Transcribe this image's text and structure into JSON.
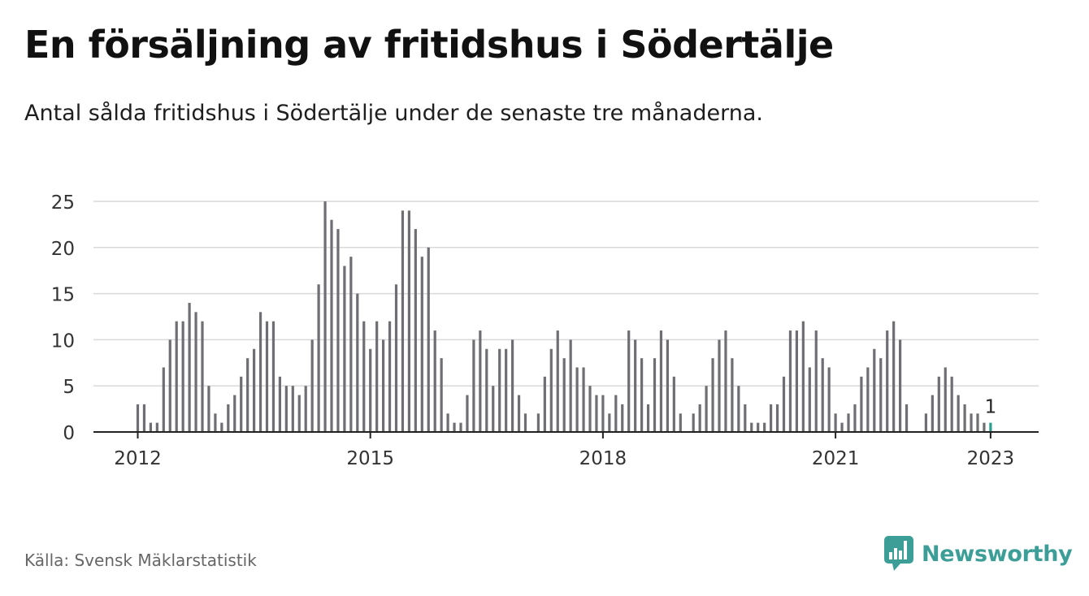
{
  "header": {
    "title": "En försäljning av fritidshus i Södertälje",
    "subtitle": "Antal sålda fritidshus i Södertälje under de senaste tre månaderna."
  },
  "footer": {
    "source": "Källa: Svensk Mäklarstatistik",
    "brand": "Newsworthy",
    "brand_icon": "newsworthy-chart-icon"
  },
  "colors": {
    "bar": "#6e6e73",
    "highlight": "#2a9d8f",
    "grid": "#d9d9d9",
    "brand": "#3d9e98"
  },
  "chart_data": {
    "type": "bar",
    "title": "",
    "xlabel": "",
    "ylabel": "",
    "ylim": [
      0,
      25
    ],
    "yticks": [
      0,
      5,
      10,
      15,
      20,
      25
    ],
    "xticks": [
      {
        "label": "2012",
        "month": "2012-01"
      },
      {
        "label": "2015",
        "month": "2015-01"
      },
      {
        "label": "2018",
        "month": "2018-01"
      },
      {
        "label": "2021",
        "month": "2021-01"
      },
      {
        "label": "2023",
        "month": "2023-01"
      }
    ],
    "grid": true,
    "start_month": "2012-01",
    "values": [
      3,
      3,
      1,
      1,
      7,
      10,
      12,
      12,
      14,
      13,
      12,
      5,
      2,
      1,
      3,
      4,
      6,
      8,
      9,
      13,
      12,
      12,
      6,
      5,
      5,
      4,
      5,
      10,
      16,
      25,
      23,
      22,
      18,
      19,
      15,
      12,
      9,
      12,
      10,
      12,
      16,
      24,
      24,
      22,
      19,
      20,
      11,
      8,
      2,
      1,
      1,
      4,
      10,
      11,
      9,
      5,
      9,
      9,
      10,
      4,
      2,
      0,
      2,
      6,
      9,
      11,
      8,
      10,
      7,
      7,
      5,
      4,
      4,
      2,
      4,
      3,
      11,
      10,
      8,
      3,
      8,
      11,
      10,
      6,
      2,
      0,
      2,
      3,
      5,
      8,
      10,
      11,
      8,
      5,
      3,
      1,
      1,
      1,
      3,
      3,
      6,
      11,
      11,
      12,
      7,
      11,
      8,
      7,
      2,
      1,
      2,
      3,
      6,
      7,
      9,
      8,
      11,
      12,
      10,
      3,
      0,
      0,
      2,
      4,
      6,
      7,
      6,
      4,
      3,
      2,
      2,
      1,
      1
    ],
    "highlight_last": true,
    "last_label": "1"
  }
}
